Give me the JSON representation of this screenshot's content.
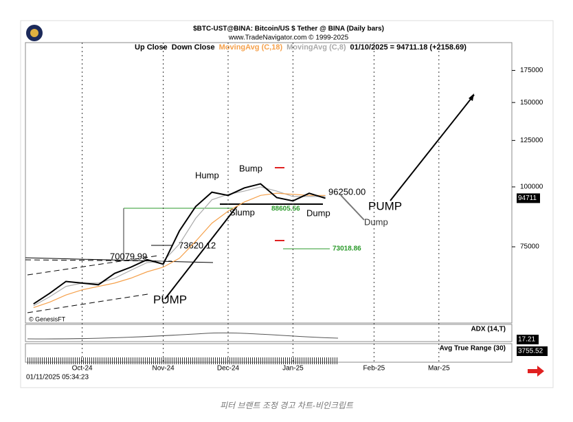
{
  "chart_data": {
    "type": "line",
    "title": "$BTC-UST@BINA:  Bitcoin/US $ Tether @ BINA  (Daily bars)",
    "subtitle": "www.TradeNavigator.com © 1999-2025",
    "legend": [
      "Up Close",
      "Down Close",
      "MovingAvg (C,18)",
      "MovingAvg (C,8)",
      "01/10/2025 = 94711.18 (+2158.69)"
    ],
    "legend_colors": [
      "#000000",
      "#000000",
      "#f5a04a",
      "#aaaaaa",
      "#000000"
    ],
    "categories": [
      null,
      null,
      null,
      "Oct-24",
      null,
      null,
      null,
      null,
      "Nov-24",
      null,
      null,
      null,
      "Dec-24",
      null,
      null,
      null,
      "Jan-25",
      null,
      null,
      null,
      null,
      "Feb-25",
      null,
      null,
      null,
      "Mar-25",
      null,
      null,
      null,
      null
    ],
    "series": [
      {
        "name": "Close",
        "color": "#000000",
        "values": [
          57000,
          60000,
          63500,
          63000,
          62500,
          66000,
          68000,
          70500,
          69000,
          81000,
          91000,
          97500,
          96000,
          99500,
          101500,
          95000,
          93500,
          97000,
          94711,
          null,
          null,
          null,
          null,
          null,
          null,
          null,
          null,
          null,
          null,
          null
        ]
      },
      {
        "name": "MovingAvg (C,18)",
        "color": "#f5a04a",
        "values": [
          56000,
          57500,
          59500,
          61000,
          62000,
          63000,
          64500,
          66500,
          68000,
          71000,
          77000,
          84000,
          89000,
          93000,
          96000,
          97000,
          96500,
          96000,
          96000,
          null,
          null,
          null,
          null,
          null,
          null,
          null,
          null,
          null,
          null,
          null
        ]
      },
      {
        "name": "MovingAvg (C,8)",
        "color": "#aaaaaa",
        "values": [
          56500,
          59000,
          62000,
          63000,
          63000,
          64500,
          67000,
          69500,
          70000,
          76000,
          86000,
          94000,
          96500,
          98000,
          100000,
          98000,
          95500,
          95500,
          95500,
          null,
          null,
          null,
          null,
          null,
          null,
          null,
          null,
          null,
          null,
          null
        ]
      }
    ],
    "ylim": [
      52000,
      200000
    ],
    "yticks": [
      75000,
      100000,
      125000,
      150000,
      175000
    ],
    "log_scale": true,
    "last_price_label": "94711",
    "annotations": [
      "Hump",
      "Bump",
      "Slump",
      "Dump",
      "Dump",
      "PUMP",
      "PUMP",
      "70079.99",
      "73620.12",
      "96250.00",
      "88605.56",
      "73018.86"
    ],
    "watermark": "© GenesisFT",
    "indicators": [
      {
        "name": "ADX (14,T)",
        "value_label": "17.21"
      },
      {
        "name": "Avg True Range (30)",
        "value_label": "3755.52"
      }
    ],
    "timestamp": "01/11/2025 05:34:23",
    "caption": "피터 브랜트 조정 경고 차트-비인크립트"
  }
}
